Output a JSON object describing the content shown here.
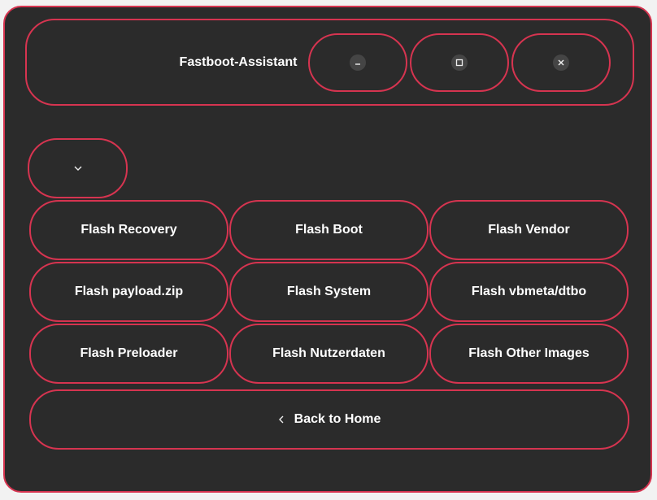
{
  "window": {
    "title": "Fastboot-Assistant",
    "controls": [
      {
        "name": "minimize",
        "icon": "minimize-icon",
        "glyph": "–"
      },
      {
        "name": "maximize",
        "icon": "maximize-icon",
        "glyph": "☐"
      },
      {
        "name": "close",
        "icon": "close-icon",
        "glyph": "✕"
      }
    ]
  },
  "dropdown": {
    "icon": "chevron-down-icon"
  },
  "flash_buttons": [
    [
      "Flash Recovery",
      "Flash Boot",
      "Flash Vendor"
    ],
    [
      "Flash payload.zip",
      "Flash System",
      "Flash vbmeta/dtbo"
    ],
    [
      "Flash Preloader",
      "Flash Nutzerdaten",
      "Flash Other Images"
    ]
  ],
  "back": {
    "label": "Back to Home",
    "icon": "chevron-left-icon"
  },
  "colors": {
    "background": "#2b2b2b",
    "accent_border": "#d63450",
    "text": "#ffffff"
  }
}
